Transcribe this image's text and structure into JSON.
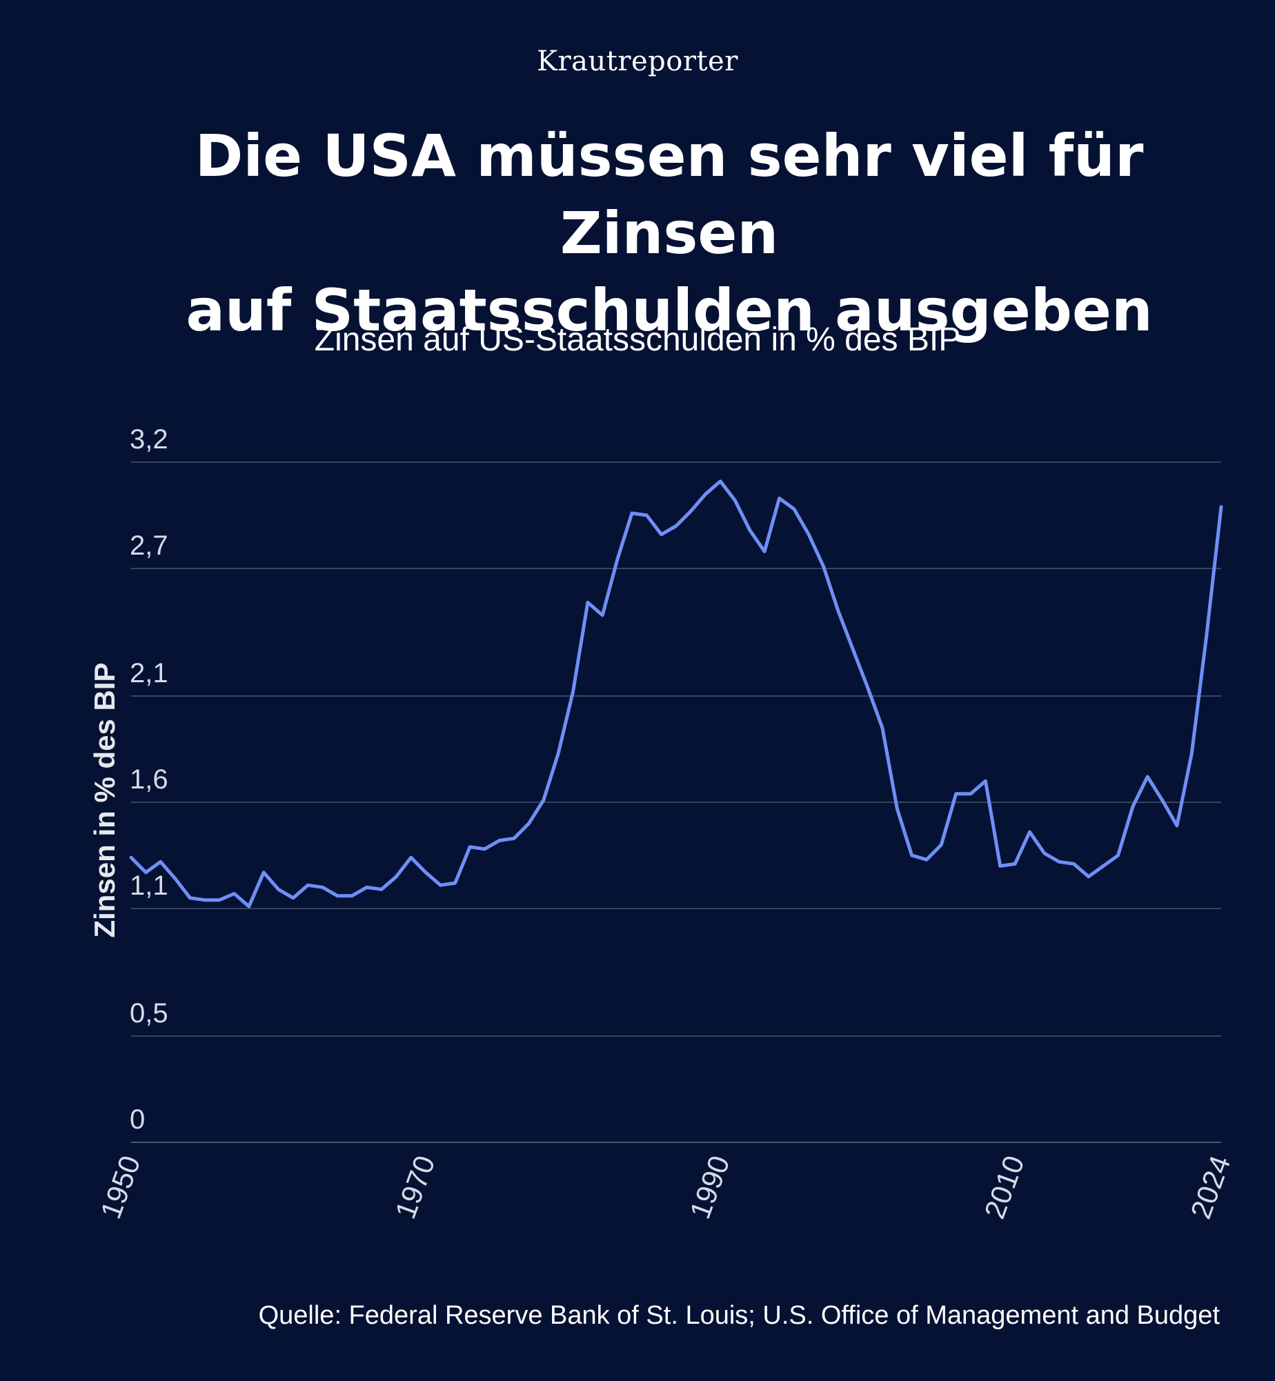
{
  "header": {
    "brand": "Krautreporter",
    "title_line1": "Die USA müssen sehr viel für Zinsen",
    "title_line2": "auf Staatsschulden ausgeben",
    "subtitle": "Zinsen auf US-Staatsschulden in % des BIP"
  },
  "footer": {
    "source": "Quelle: Federal Reserve Bank of St. Louis; U.S. Office of Management and Budget"
  },
  "colors": {
    "background": "#061233",
    "line": "#6f8ff5",
    "grid": "#4a5570"
  },
  "chart_data": {
    "type": "line",
    "ylabel": "Zinsen in % des BIP",
    "xlabel": "",
    "ylim": [
      0,
      3.2
    ],
    "xlim": [
      1950,
      2024
    ],
    "yticks": [
      0,
      0.5,
      1.1,
      1.6,
      2.1,
      2.7,
      3.2
    ],
    "ytick_labels": [
      "0",
      "0,5",
      "1,1",
      "1,6",
      "2,1",
      "2,7",
      "3,2"
    ],
    "xtick_labels": [
      "1950",
      "1970",
      "1990",
      "2010",
      "2024"
    ],
    "grid": true,
    "series": [
      {
        "x": [
          1950,
          1951,
          1952,
          1953,
          1954,
          1955,
          1956,
          1957,
          1958,
          1959,
          1960,
          1961,
          1962,
          1963,
          1964,
          1965,
          1966,
          1967,
          1968,
          1969,
          1970,
          1971,
          1972,
          1973,
          1974,
          1975,
          1976,
          1977,
          1978,
          1979,
          1980,
          1981,
          1982,
          1983,
          1984,
          1985,
          1986,
          1987,
          1988,
          1989,
          1990,
          1991,
          1992,
          1993,
          1994,
          1995,
          1996,
          1997,
          1998,
          1999,
          2000,
          2001,
          2002,
          2003,
          2004,
          2005,
          2006,
          2007,
          2008,
          2009,
          2010,
          2011,
          2012,
          2013,
          2014,
          2015,
          2016,
          2017,
          2018,
          2019,
          2020,
          2021,
          2022,
          2023,
          2024
        ],
        "y": [
          1.34,
          1.27,
          1.32,
          1.24,
          1.15,
          1.14,
          1.14,
          1.17,
          1.11,
          1.27,
          1.19,
          1.15,
          1.21,
          1.2,
          1.16,
          1.16,
          1.2,
          1.19,
          1.25,
          1.34,
          1.27,
          1.21,
          1.22,
          1.39,
          1.38,
          1.42,
          1.43,
          1.5,
          1.61,
          1.83,
          2.12,
          2.54,
          2.48,
          2.74,
          2.96,
          2.95,
          2.86,
          2.9,
          2.97,
          3.05,
          3.11,
          3.02,
          2.88,
          2.78,
          3.03,
          2.98,
          2.86,
          2.71,
          2.5,
          2.32,
          2.14,
          1.95,
          1.57,
          1.35,
          1.33,
          1.4,
          1.64,
          1.64,
          1.7,
          1.3,
          1.31,
          1.46,
          1.36,
          1.32,
          1.31,
          1.25,
          1.3,
          1.35,
          1.58,
          1.72,
          1.61,
          1.49,
          1.83,
          2.38,
          2.99
        ]
      }
    ],
    "source": "Quelle: Federal Reserve Bank of St. Louis; U.S. Office of Management and Budget"
  }
}
